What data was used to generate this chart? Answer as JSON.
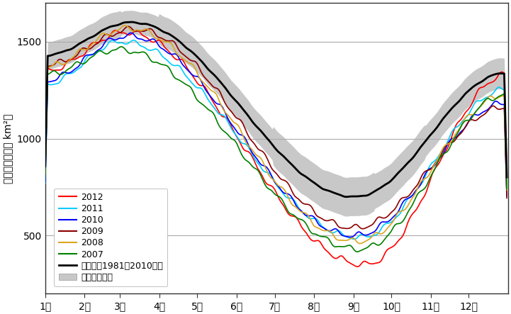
{
  "title": "",
  "ylabel": "海氷域面積（万 km²）",
  "xlabel": "",
  "xtick_labels": [
    "1月",
    "2月",
    "3月",
    "4月",
    "5月",
    "6月",
    "7月",
    "8月",
    "9月",
    "10月",
    "11月",
    "12月"
  ],
  "ytick_values": [
    500,
    1000,
    1500
  ],
  "ylim": [
    200,
    1700
  ],
  "xlim": [
    0,
    365
  ],
  "background_color": "#ffffff",
  "grid_color": "#aaaaaa",
  "years": [
    "2012",
    "2011",
    "2010",
    "2009",
    "2008",
    "2007"
  ],
  "year_colors": [
    "#ff0000",
    "#00ccff",
    "#0000ff",
    "#8b0000",
    "#daa520",
    "#008000"
  ],
  "mean_color": "#000000",
  "shade_color": "#c8c8c8",
  "mean_label": "平年値（1981～2010年）",
  "shade_label": "平年並の範囲"
}
